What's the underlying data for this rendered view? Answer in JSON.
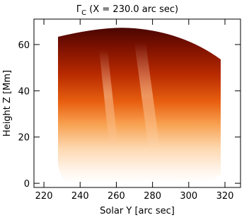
{
  "chart_data": {
    "type": "image",
    "title": "Γ",
    "title_subscript": "C",
    "title_rest": " (X = 230.0 arc sec)",
    "x_label": "Solar Y [arc sec]",
    "y_label": "Height Z [Mm]",
    "xlim": [
      214.5,
      328.6
    ],
    "ylim": [
      -1.8,
      71
    ],
    "xticks": [
      220,
      240,
      260,
      280,
      300,
      320
    ],
    "yticks": [
      0,
      20,
      40,
      60
    ]
  }
}
